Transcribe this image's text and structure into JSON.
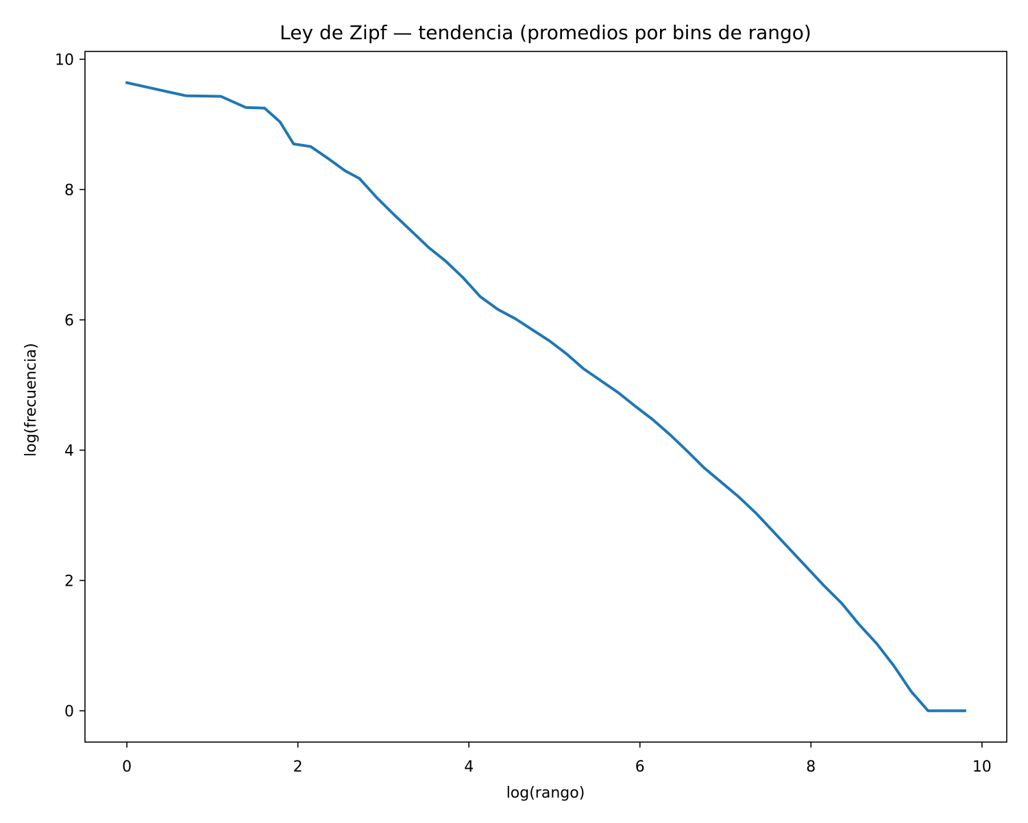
{
  "chart_data": {
    "type": "line",
    "title": "Ley de Zipf — tendencia (promedios por bins de rango)",
    "xlabel": "log(rango)",
    "ylabel": "log(frecuencia)",
    "xlim": [
      -0.49,
      10.29
    ],
    "ylim": [
      -0.48,
      10.12
    ],
    "x_ticks": [
      0,
      2,
      4,
      6,
      8,
      10
    ],
    "y_ticks": [
      0,
      2,
      4,
      6,
      8,
      10
    ],
    "grid": false,
    "legend": "none",
    "series": [
      {
        "color": "#1f77b4",
        "x": [
          0.0,
          0.69,
          1.1,
          1.39,
          1.61,
          1.79,
          1.95,
          2.15,
          2.35,
          2.55,
          2.72,
          2.92,
          3.12,
          3.33,
          3.53,
          3.73,
          3.93,
          4.13,
          4.34,
          4.54,
          4.74,
          4.94,
          5.14,
          5.34,
          5.54,
          5.75,
          5.95,
          6.15,
          6.35,
          6.55,
          6.75,
          6.95,
          7.15,
          7.36,
          7.56,
          7.76,
          7.96,
          8.16,
          8.36,
          8.56,
          8.77,
          8.97,
          9.17,
          9.37,
          9.57,
          9.8
        ],
        "y": [
          9.64,
          9.44,
          9.43,
          9.26,
          9.25,
          9.04,
          8.7,
          8.66,
          8.48,
          8.29,
          8.17,
          7.88,
          7.62,
          7.36,
          7.11,
          6.9,
          6.65,
          6.36,
          6.16,
          6.02,
          5.85,
          5.68,
          5.48,
          5.25,
          5.07,
          4.88,
          4.67,
          4.47,
          4.24,
          3.99,
          3.73,
          3.51,
          3.29,
          3.03,
          2.75,
          2.47,
          2.19,
          1.91,
          1.65,
          1.33,
          1.03,
          0.69,
          0.3,
          0.0,
          0.0,
          0.0
        ]
      }
    ]
  }
}
